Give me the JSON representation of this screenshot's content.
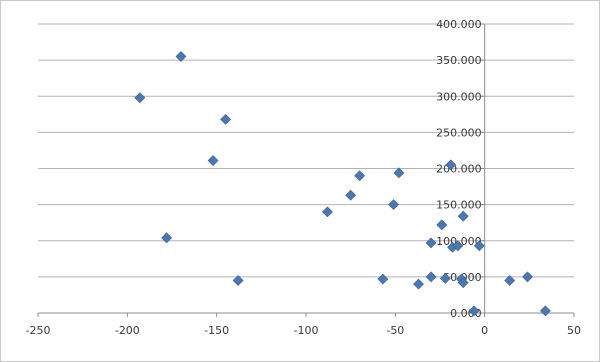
{
  "chart_data": {
    "type": "scatter",
    "title": "",
    "xlabel": "",
    "ylabel": "",
    "xlim": [
      -250,
      50
    ],
    "ylim": [
      0,
      400
    ],
    "x_ticks": [
      -250,
      -200,
      -150,
      -100,
      -50,
      0,
      50
    ],
    "x_tick_labels": [
      "-250",
      "-200",
      "-150",
      "-100",
      "-50",
      "0",
      "50"
    ],
    "y_ticks": [
      0,
      50,
      100,
      150,
      200,
      250,
      300,
      350,
      400
    ],
    "y_tick_labels": [
      "0.000",
      "50.000",
      "100.000",
      "150.000",
      "200.000",
      "250.000",
      "300.000",
      "350.000",
      "400.000"
    ],
    "grid": true,
    "legend": "none",
    "marker_color": "#4a78b4",
    "points": [
      {
        "x": -170,
        "y": 355
      },
      {
        "x": -193,
        "y": 298
      },
      {
        "x": -145,
        "y": 268
      },
      {
        "x": -152,
        "y": 211
      },
      {
        "x": -178,
        "y": 104
      },
      {
        "x": -138,
        "y": 45
      },
      {
        "x": -88,
        "y": 140
      },
      {
        "x": -75,
        "y": 163
      },
      {
        "x": -70,
        "y": 190
      },
      {
        "x": -48,
        "y": 194
      },
      {
        "x": -51,
        "y": 150
      },
      {
        "x": -19,
        "y": 205
      },
      {
        "x": -12,
        "y": 134
      },
      {
        "x": -24,
        "y": 122
      },
      {
        "x": -30,
        "y": 97
      },
      {
        "x": -18,
        "y": 91
      },
      {
        "x": -15,
        "y": 93
      },
      {
        "x": -3,
        "y": 93
      },
      {
        "x": -57,
        "y": 47
      },
      {
        "x": -37,
        "y": 40
      },
      {
        "x": -30,
        "y": 50
      },
      {
        "x": -22,
        "y": 48
      },
      {
        "x": -13,
        "y": 47
      },
      {
        "x": -12,
        "y": 42
      },
      {
        "x": -6,
        "y": 3
      },
      {
        "x": 14,
        "y": 45
      },
      {
        "x": 24,
        "y": 50
      },
      {
        "x": 34,
        "y": 3
      }
    ]
  }
}
